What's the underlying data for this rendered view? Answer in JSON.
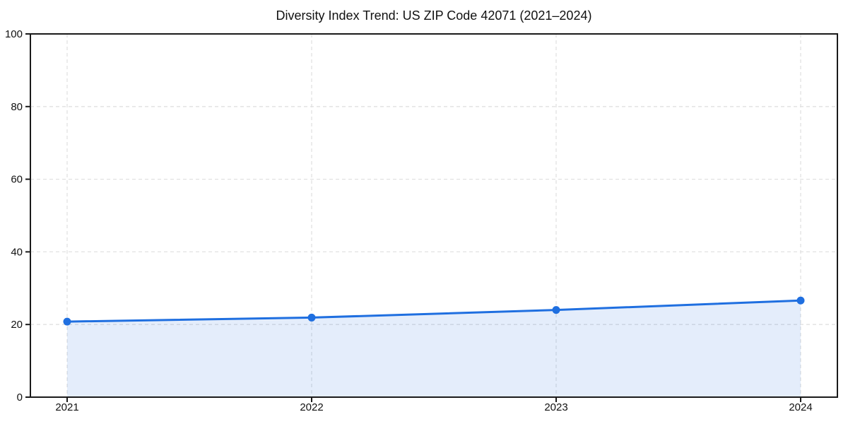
{
  "chart_data": {
    "type": "area",
    "title": "Diversity Index Trend: US ZIP Code 42071 (2021–2024)",
    "xlabel": "",
    "ylabel": "",
    "categories": [
      "2021",
      "2022",
      "2023",
      "2024"
    ],
    "x": [
      2021,
      2022,
      2023,
      2024
    ],
    "series": [
      {
        "name": "Diversity Index",
        "values": [
          20.8,
          21.9,
          24.0,
          26.6
        ]
      }
    ],
    "ylim": [
      0,
      100
    ],
    "y_ticks": [
      0,
      20,
      40,
      60,
      80,
      100
    ],
    "grid": "dashed-both-axes",
    "legend": "none",
    "marker": "circle",
    "colors": {
      "line": "#1f6fe0",
      "fill": "#1f6fe0",
      "fill_opacity": 0.12,
      "grid": "#e1e1e1",
      "axis": "#1a1a1a",
      "text": "#111111",
      "background": "#ffffff"
    }
  }
}
